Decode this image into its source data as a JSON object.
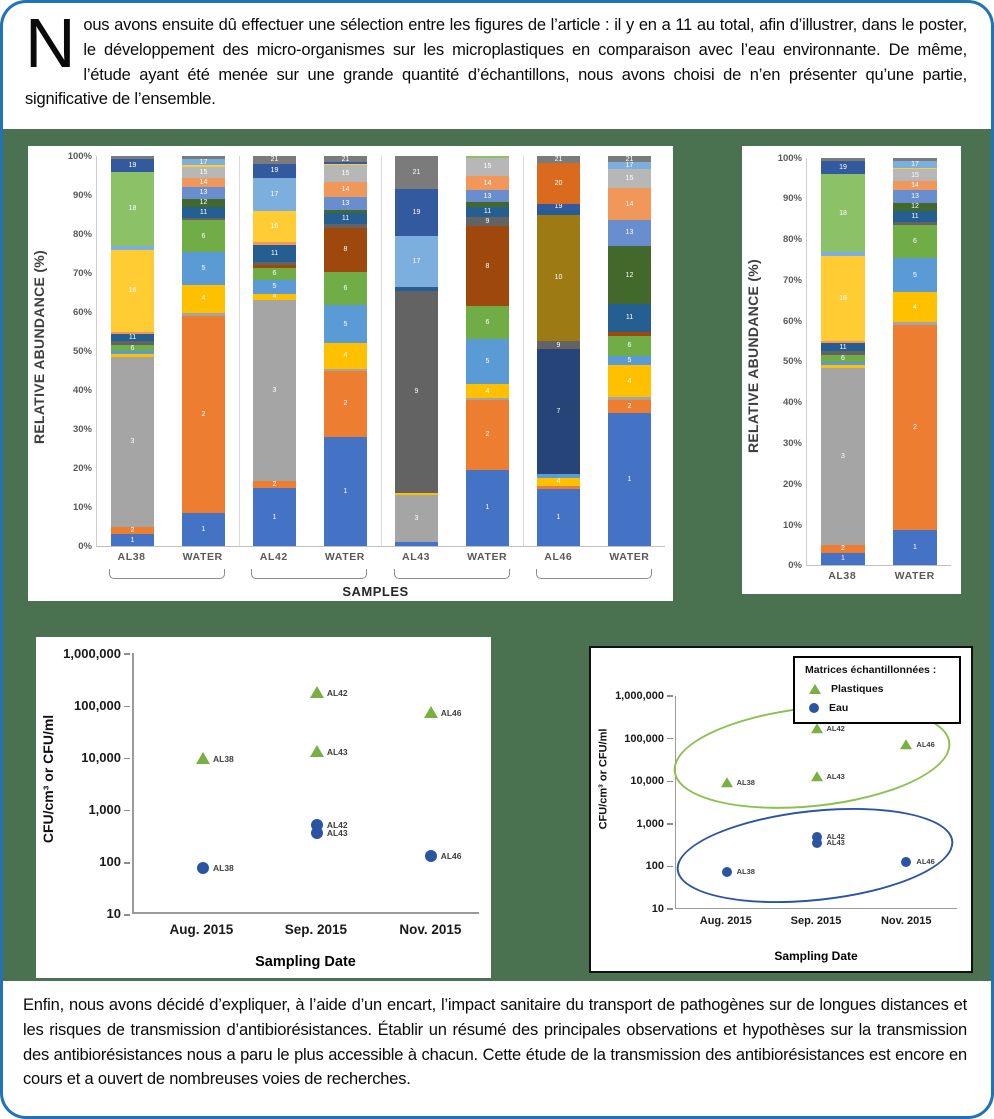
{
  "page": {
    "background_color": "#4a7250",
    "frame_color": "#2273b5",
    "intro": {
      "dropcap": "N",
      "text": "ous avons ensuite dû effectuer une sélection entre les figures de l’article :  il y en a 11 au total, afin d’illustrer, dans le poster, le développement des micro-organismes sur les microplastiques en comparaison avec l’eau environnante. De même, l’étude ayant été menée sur une grande quantité d’échantillons, nous avons choisi de n’en présenter qu’une partie, significative de l’ensemble."
    },
    "outro": "Enfin, nous avons décidé d’expliquer, à l’aide d’un encart, l’impact sanitaire du transport de pathogènes sur de longues distances et les risques de transmission d’antibiorésistances. Établir un résumé des principales observations et hypothèses sur la transmission des antibiorésistances nous a paru le plus accessible à chacun. Cette étude de la transmission des antibiorésistances est encore en cours et a ouvert de nombreuses voies de recherches."
  },
  "palette": {
    "1": "#4472C4",
    "2": "#ED7D31",
    "3": "#A5A5A5",
    "4": "#FFC000",
    "5": "#5B9BD5",
    "6": "#70AD47",
    "7": "#264478",
    "8": "#9E480E",
    "9": "#636363",
    "10": "#9D7A14",
    "11": "#255E91",
    "12": "#43682B",
    "13": "#698ED0",
    "14": "#F1975A",
    "15": "#B7B7B7",
    "16": "#FFCD33",
    "17": "#7CAFDD",
    "18": "#8CC168",
    "19": "#33599F",
    "20": "#D96A1E",
    "21": "#7B7B7B"
  },
  "chart_data": [
    {
      "id": "stacked_main",
      "type": "bar",
      "subtype": "stacked_percent",
      "title": "",
      "xlabel": "SAMPLES",
      "ylabel": "RELATIVE ABUNDANCE (%)",
      "ylim": [
        0,
        100
      ],
      "yticks": [
        "100%",
        "90%",
        "80%",
        "70%",
        "60%",
        "50%",
        "40%",
        "30%",
        "20%",
        "10%",
        "0%"
      ],
      "group_pairs": [
        [
          "AL38",
          "WATER"
        ],
        [
          "AL42",
          "WATER"
        ],
        [
          "AL43",
          "WATER"
        ],
        [
          "AL46",
          "WATER"
        ]
      ],
      "columns": [
        {
          "category": "AL38",
          "segments": [
            [
              "1",
              3
            ],
            [
              "2",
              2
            ],
            [
              "3",
              43.5
            ],
            [
              "4",
              0.7
            ],
            [
              "5",
              0.8
            ],
            [
              "6",
              1.5
            ],
            [
              "9",
              1
            ],
            [
              "11",
              2
            ],
            [
              "14",
              0.5
            ],
            [
              "16",
              21
            ],
            [
              "17",
              1
            ],
            [
              "18",
              19
            ],
            [
              "19",
              3.2
            ],
            [
              "21",
              0.8
            ]
          ]
        },
        {
          "category": "WATER",
          "segments": [
            [
              "1",
              8.5
            ],
            [
              "2",
              50.5
            ],
            [
              "3",
              0.7
            ],
            [
              "4",
              7.3
            ],
            [
              "5",
              8.5
            ],
            [
              "6",
              8
            ],
            [
              "9",
              0.7
            ],
            [
              "11",
              2.8
            ],
            [
              "12",
              2
            ],
            [
              "13",
              3.2
            ],
            [
              "14",
              2.2
            ],
            [
              "15",
              2.8
            ],
            [
              "16",
              0.4
            ],
            [
              "17",
              1.6
            ],
            [
              "21",
              0.8
            ]
          ]
        },
        {
          "category": "AL42",
          "segments": [
            [
              "1",
              14.8
            ],
            [
              "2",
              1.8
            ],
            [
              "3",
              46.6
            ],
            [
              "4",
              1.5
            ],
            [
              "5",
              3.6
            ],
            [
              "6",
              3
            ],
            [
              "8",
              0.8
            ],
            [
              "9",
              0.8
            ],
            [
              "11",
              4.3
            ],
            [
              "14",
              0.8
            ],
            [
              "16",
              8
            ],
            [
              "17",
              8.5
            ],
            [
              "19",
              3.6
            ],
            [
              "21",
              1.9
            ]
          ]
        },
        {
          "category": "WATER",
          "segments": [
            [
              "1",
              28
            ],
            [
              "2",
              17
            ],
            [
              "3",
              0.5
            ],
            [
              "4",
              6.5
            ],
            [
              "5",
              9.7
            ],
            [
              "6",
              8.6
            ],
            [
              "8",
              11.3
            ],
            [
              "9",
              1
            ],
            [
              "11",
              2.7
            ],
            [
              "12",
              1
            ],
            [
              "13",
              3.2
            ],
            [
              "14",
              3.8
            ],
            [
              "15",
              4.3
            ],
            [
              "16",
              0.4
            ],
            [
              "19",
              0.5
            ],
            [
              "21",
              1.5
            ]
          ]
        },
        {
          "category": "AL43",
          "segments": [
            [
              "1",
              1
            ],
            [
              "3",
              12
            ],
            [
              "4",
              0.5
            ],
            [
              "9",
              52
            ],
            [
              "11",
              1
            ],
            [
              "17",
              13
            ],
            [
              "19",
              12
            ],
            [
              "21",
              8.5
            ]
          ]
        },
        {
          "category": "WATER",
          "segments": [
            [
              "1",
              19.5
            ],
            [
              "2",
              18
            ],
            [
              "3",
              0.5
            ],
            [
              "4",
              3.5
            ],
            [
              "5",
              11.5
            ],
            [
              "6",
              8.5
            ],
            [
              "8",
              20.5
            ],
            [
              "9",
              2.5
            ],
            [
              "11",
              2.5
            ],
            [
              "12",
              1.2
            ],
            [
              "13",
              3
            ],
            [
              "14",
              3.8
            ],
            [
              "15",
              4.5
            ],
            [
              "18",
              0.5
            ]
          ]
        },
        {
          "category": "AL46",
          "segments": [
            [
              "1",
              14.5
            ],
            [
              "2",
              1
            ],
            [
              "4",
              2
            ],
            [
              "5",
              1
            ],
            [
              "7",
              32
            ],
            [
              "9",
              2
            ],
            [
              "10",
              32.5
            ],
            [
              "11",
              1.2
            ],
            [
              "19",
              1.5
            ],
            [
              "20",
              10.5
            ],
            [
              "21",
              1.8
            ]
          ]
        },
        {
          "category": "WATER",
          "segments": [
            [
              "1",
              34
            ],
            [
              "2",
              3.5
            ],
            [
              "3",
              0.8
            ],
            [
              "4",
              8
            ],
            [
              "5",
              2.5
            ],
            [
              "6",
              5
            ],
            [
              "8",
              1.2
            ],
            [
              "11",
              7
            ],
            [
              "12",
              15
            ],
            [
              "13",
              6.7
            ],
            [
              "14",
              8
            ],
            [
              "15",
              5
            ],
            [
              "17",
              1.8
            ],
            [
              "21",
              1.5
            ]
          ]
        }
      ]
    },
    {
      "id": "stacked_al38",
      "type": "bar",
      "subtype": "stacked_percent",
      "title": "",
      "xlabel": "",
      "ylabel": "RELATIVE ABUNDANCE (%)",
      "ylim": [
        0,
        100
      ],
      "yticks": [
        "100%",
        "90%",
        "80%",
        "70%",
        "60%",
        "50%",
        "40%",
        "30%",
        "20%",
        "10%",
        "0%"
      ],
      "columns": [
        {
          "category": "AL38",
          "segments": [
            [
              "1",
              3
            ],
            [
              "2",
              2
            ],
            [
              "3",
              43.5
            ],
            [
              "4",
              0.7
            ],
            [
              "5",
              0.8
            ],
            [
              "6",
              1.5
            ],
            [
              "9",
              1
            ],
            [
              "11",
              2
            ],
            [
              "14",
              0.5
            ],
            [
              "16",
              21
            ],
            [
              "17",
              1
            ],
            [
              "18",
              19
            ],
            [
              "19",
              3.2
            ],
            [
              "21",
              0.8
            ]
          ]
        },
        {
          "category": "WATER",
          "segments": [
            [
              "1",
              8.5
            ],
            [
              "2",
              50.5
            ],
            [
              "3",
              0.7
            ],
            [
              "4",
              7.3
            ],
            [
              "5",
              8.5
            ],
            [
              "6",
              8
            ],
            [
              "9",
              0.7
            ],
            [
              "11",
              2.8
            ],
            [
              "12",
              2
            ],
            [
              "13",
              3.2
            ],
            [
              "14",
              2.2
            ],
            [
              "15",
              2.8
            ],
            [
              "16",
              0.4
            ],
            [
              "17",
              1.6
            ],
            [
              "21",
              0.8
            ]
          ]
        }
      ]
    },
    {
      "id": "scatter_left",
      "type": "scatter",
      "title": "",
      "xlabel": "Sampling Date",
      "ylabel": "CFU/cm³ or CFU/ml",
      "yscale": "log",
      "ylim": [
        10,
        1000000
      ],
      "yticks": [
        "1,000,000",
        "100,000",
        "10,000",
        "1,000",
        "100",
        "10"
      ],
      "xticks": [
        "Aug. 2015",
        "Sep. 2015",
        "Nov. 2015"
      ],
      "xfractions": [
        0.2,
        0.53,
        0.86
      ],
      "series": [
        {
          "name": "Plastiques",
          "marker": "triangle",
          "color": "#7aaf41",
          "points": [
            {
              "x": "Aug. 2015",
              "y": 9000,
              "label": "AL38"
            },
            {
              "x": "Sep. 2015",
              "y": 170000,
              "label": "AL42"
            },
            {
              "x": "Sep. 2015",
              "y": 12500,
              "label": "AL43"
            },
            {
              "x": "Nov. 2015",
              "y": 70000,
              "label": "AL46"
            }
          ]
        },
        {
          "name": "Eau",
          "marker": "circle",
          "color": "#2b55a3",
          "points": [
            {
              "x": "Aug. 2015",
              "y": 70,
              "label": "AL38"
            },
            {
              "x": "Sep. 2015",
              "y": 470,
              "label": "AL42"
            },
            {
              "x": "Sep. 2015",
              "y": 340,
              "label": "AL43"
            },
            {
              "x": "Nov. 2015",
              "y": 120,
              "label": "AL46"
            }
          ]
        }
      ]
    },
    {
      "id": "scatter_right",
      "type": "scatter",
      "title": "",
      "xlabel": "Sampling Date",
      "ylabel": "CFU/cm³ or CFU/ml",
      "yscale": "log",
      "ylim": [
        10,
        1000000
      ],
      "yticks": [
        "1,000,000",
        "100,000",
        "10,000",
        "1,000",
        "100",
        "10"
      ],
      "xticks": [
        "Aug. 2015",
        "Sep. 2015",
        "Nov. 2015"
      ],
      "xfractions": [
        0.18,
        0.5,
        0.82
      ],
      "legend": {
        "title": "Matrices échantillonnées :",
        "items": [
          {
            "label": "Plastiques",
            "marker": "triangle",
            "color": "#7aaf41"
          },
          {
            "label": "Eau",
            "marker": "circle",
            "color": "#2b55a3"
          }
        ]
      },
      "ellipses": [
        {
          "around": "Plastiques",
          "color": "#8cc152"
        },
        {
          "around": "Eau",
          "color": "#2b55a3"
        }
      ],
      "series": [
        {
          "name": "Plastiques",
          "marker": "triangle",
          "color": "#7aaf41",
          "points": [
            {
              "x": "Aug. 2015",
              "y": 9000,
              "label": "AL38"
            },
            {
              "x": "Sep. 2015",
              "y": 170000,
              "label": "AL42"
            },
            {
              "x": "Sep. 2015",
              "y": 12500,
              "label": "AL43"
            },
            {
              "x": "Nov. 2015",
              "y": 70000,
              "label": "AL46"
            }
          ]
        },
        {
          "name": "Eau",
          "marker": "circle",
          "color": "#2b55a3",
          "points": [
            {
              "x": "Aug. 2015",
              "y": 70,
              "label": "AL38"
            },
            {
              "x": "Sep. 2015",
              "y": 470,
              "label": "AL42"
            },
            {
              "x": "Sep. 2015",
              "y": 340,
              "label": "AL43"
            },
            {
              "x": "Nov. 2015",
              "y": 120,
              "label": "AL46"
            }
          ]
        }
      ]
    }
  ]
}
